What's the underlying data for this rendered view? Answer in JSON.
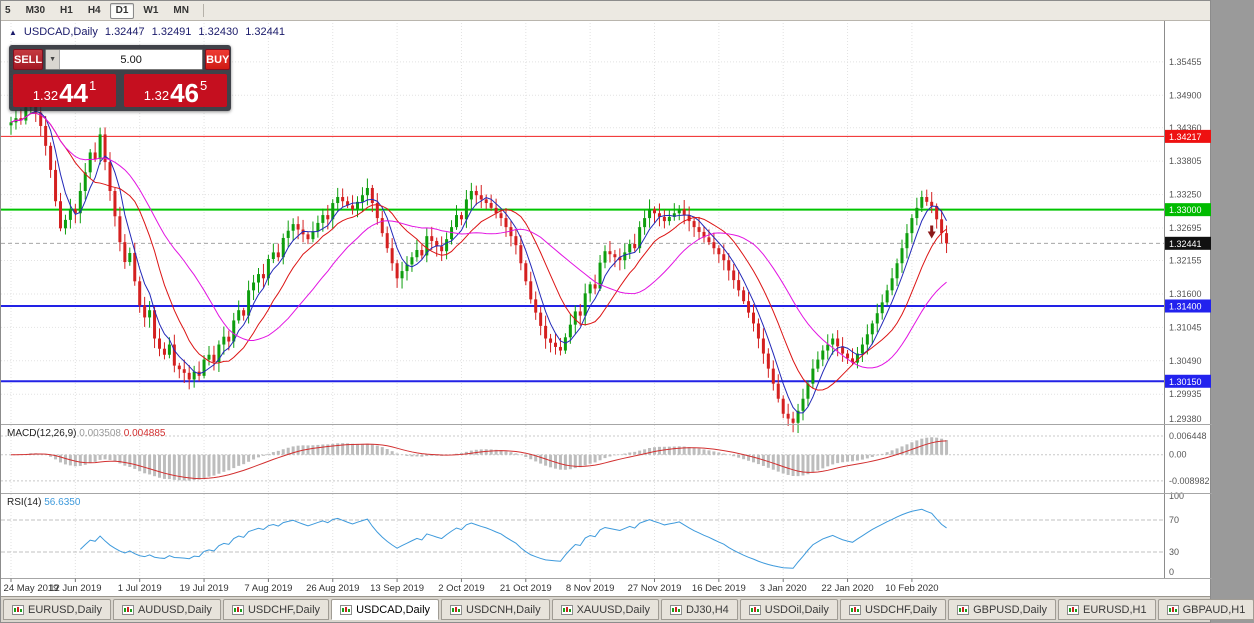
{
  "toolbar": {
    "timeframes": [
      {
        "label": "5",
        "active": false
      },
      {
        "label": "M30",
        "active": false
      },
      {
        "label": "H1",
        "active": false
      },
      {
        "label": "H4",
        "active": false
      },
      {
        "label": "D1",
        "active": true
      },
      {
        "label": "W1",
        "active": false
      },
      {
        "label": "MN",
        "active": false
      }
    ]
  },
  "info_line": {
    "collapse_icon": "▲",
    "symbol": "USDCAD,Daily",
    "open": "1.32447",
    "high": "1.32491",
    "low": "1.32430",
    "close": "1.32441"
  },
  "one_click": {
    "sell_label": "SELL",
    "buy_label": "BUY",
    "volume": "5.00",
    "dropdown_icon": "▼",
    "sell_price": {
      "prefix": "1.32",
      "big": "44",
      "sup": "1",
      "full": "1.32441"
    },
    "buy_price": {
      "prefix": "1.32",
      "big": "46",
      "sup": "5",
      "full": "1.32465"
    }
  },
  "price_axis": {
    "labels": [
      {
        "text": "1.35455",
        "value": 1.35455
      },
      {
        "text": "1.34900",
        "value": 1.349
      },
      {
        "text": "1.34360",
        "value": 1.3436
      },
      {
        "text": "1.33805",
        "value": 1.33805
      },
      {
        "text": "1.33250",
        "value": 1.3325
      },
      {
        "text": "1.32695",
        "value": 1.32695
      },
      {
        "text": "1.32155",
        "value": 1.32155
      },
      {
        "text": "1.31600",
        "value": 1.316
      },
      {
        "text": "1.31045",
        "value": 1.31045
      },
      {
        "text": "1.30490",
        "value": 1.3049
      },
      {
        "text": "1.29935",
        "value": 1.29935
      },
      {
        "text": "1.29380",
        "value": 1.2938
      }
    ],
    "badges": [
      {
        "text": "1.34217",
        "value": 1.34217,
        "color": "#ee1111"
      },
      {
        "text": "1.33000",
        "value": 1.33,
        "color": "#00bb00"
      },
      {
        "text": "1.32441",
        "value": 1.32441,
        "color": "#111111"
      },
      {
        "text": "1.31400",
        "value": 1.314,
        "color": "#2222ee"
      },
      {
        "text": "1.30150",
        "value": 1.3015,
        "color": "#2222ee"
      }
    ]
  },
  "indicators": {
    "macd": {
      "label": "MACD(12,26,9)",
      "value1": "0.003508",
      "value2": "0.004885",
      "axis": [
        "0.006448",
        "0.00",
        "-0.008982"
      ]
    },
    "rsi": {
      "label": "RSI(14)",
      "value": "56.6350",
      "axis": [
        "100",
        "70",
        "30",
        "0"
      ],
      "levels": [
        70,
        30
      ]
    }
  },
  "date_axis": [
    "24 May 2019",
    "12 Jun 2019",
    "1 Jul 2019",
    "19 Jul 2019",
    "7 Aug 2019",
    "26 Aug 2019",
    "13 Sep 2019",
    "2 Oct 2019",
    "21 Oct 2019",
    "8 Nov 2019",
    "27 Nov 2019",
    "16 Dec 2019",
    "3 Jan 2020",
    "22 Jan 2020",
    "10 Feb 2020"
  ],
  "tabs": [
    {
      "label": "EURUSD,Daily",
      "active": false
    },
    {
      "label": "AUDUSD,Daily",
      "active": false
    },
    {
      "label": "USDCHF,Daily",
      "active": false
    },
    {
      "label": "USDCAD,Daily",
      "active": true
    },
    {
      "label": "USDCNH,Daily",
      "active": false
    },
    {
      "label": "XAUUSD,Daily",
      "active": false
    },
    {
      "label": "DJ30,H4",
      "active": false
    },
    {
      "label": "USDOil,Daily",
      "active": false
    },
    {
      "label": "USDCHF,Daily",
      "active": false
    },
    {
      "label": "GBPUSD,Daily",
      "active": false
    },
    {
      "label": "EURUSD,H1",
      "active": false
    },
    {
      "label": "GBPAUD,H1",
      "active": false
    }
  ],
  "chart_data": {
    "type": "candlestick",
    "title": "USDCAD,Daily",
    "ylim": [
      1.2949,
      1.361
    ],
    "x_labels": [
      "24 May 2019",
      "12 Jun 2019",
      "1 Jul 2019",
      "19 Jul 2019",
      "7 Aug 2019",
      "26 Aug 2019",
      "13 Sep 2019",
      "2 Oct 2019",
      "21 Oct 2019",
      "8 Nov 2019",
      "27 Nov 2019",
      "16 Dec 2019",
      "3 Jan 2020",
      "22 Jan 2020",
      "10 Feb 2020"
    ],
    "bars_per_label": 13,
    "first_open": 1.344,
    "closes": [
      1.3445,
      1.3452,
      1.3448,
      1.347,
      1.3485,
      1.3461,
      1.3439,
      1.3406,
      1.3366,
      1.3314,
      1.3269,
      1.3283,
      1.3301,
      1.3294,
      1.3331,
      1.3362,
      1.3395,
      1.3384,
      1.3425,
      1.3379,
      1.3331,
      1.3289,
      1.3246,
      1.3213,
      1.3228,
      1.3181,
      1.3141,
      1.3121,
      1.3133,
      1.3086,
      1.3069,
      1.3059,
      1.3076,
      1.3041,
      1.3035,
      1.3029,
      1.3018,
      1.3031,
      1.3024,
      1.3051,
      1.3059,
      1.3047,
      1.3076,
      1.3089,
      1.3081,
      1.3116,
      1.3133,
      1.3124,
      1.3166,
      1.3179,
      1.3193,
      1.3186,
      1.3218,
      1.3229,
      1.3221,
      1.3253,
      1.3265,
      1.3276,
      1.3267,
      1.3259,
      1.3251,
      1.3264,
      1.3278,
      1.3291,
      1.3284,
      1.3311,
      1.3321,
      1.3314,
      1.3307,
      1.3301,
      1.3313,
      1.3324,
      1.3336,
      1.3311,
      1.3286,
      1.3261,
      1.3236,
      1.3211,
      1.3186,
      1.3198,
      1.3209,
      1.3221,
      1.3233,
      1.3224,
      1.3256,
      1.3248,
      1.3239,
      1.3231,
      1.3251,
      1.3271,
      1.3291,
      1.3284,
      1.3317,
      1.3331,
      1.3324,
      1.3317,
      1.3311,
      1.3303,
      1.3294,
      1.3286,
      1.3271,
      1.3256,
      1.3241,
      1.3211,
      1.3181,
      1.3151,
      1.3129,
      1.3107,
      1.3086,
      1.3079,
      1.3072,
      1.3066,
      1.3088,
      1.3109,
      1.3131,
      1.3124,
      1.3161,
      1.3176,
      1.3169,
      1.3212,
      1.3231,
      1.3226,
      1.3221,
      1.3216,
      1.3229,
      1.3243,
      1.3236,
      1.3271,
      1.3286,
      1.3301,
      1.3294,
      1.3288,
      1.3281,
      1.3288,
      1.3294,
      1.3301,
      1.3291,
      1.3281,
      1.3271,
      1.3263,
      1.3254,
      1.3246,
      1.3236,
      1.3226,
      1.3216,
      1.3199,
      1.3183,
      1.3166,
      1.3148,
      1.3129,
      1.3111,
      1.3086,
      1.3061,
      1.3036,
      1.3011,
      1.2986,
      1.2961,
      1.2953,
      1.2946,
      1.2966,
      1.2986,
      1.3011,
      1.3036,
      1.3051,
      1.3066,
      1.3076,
      1.3086,
      1.3073,
      1.3061,
      1.3053,
      1.3046,
      1.3061,
      1.3076,
      1.3093,
      1.3111,
      1.3128,
      1.3146,
      1.3166,
      1.3186,
      1.3211,
      1.3236,
      1.3261,
      1.3286,
      1.3303,
      1.3321,
      1.3313,
      1.3306,
      1.3284,
      1.3261,
      1.32441
    ],
    "levels": [
      {
        "value": 1.34217,
        "color": "#f02222",
        "width": 1
      },
      {
        "value": 1.33,
        "color": "#00c400",
        "width": 2
      },
      {
        "value": 1.314,
        "color": "#2222e6",
        "width": 2
      },
      {
        "value": 1.3015,
        "color": "#2222e6",
        "width": 2
      }
    ],
    "bid": 1.32441,
    "up_color": "#0e9e0e",
    "down_color": "#d42020",
    "moving_averages": [
      {
        "period": 5,
        "color": "#2228b8"
      },
      {
        "period": 12,
        "color": "#dc1414"
      },
      {
        "period": 24,
        "color": "#e214e2"
      }
    ],
    "marker": {
      "index": 186,
      "price": 1.3252,
      "type": "down-arrow",
      "color": "#8b1a1a"
    },
    "macd": {
      "fast": 12,
      "slow": 26,
      "signal": 9,
      "range": [
        -0.0118,
        0.0092
      ]
    },
    "rsi": {
      "period": 14,
      "range": [
        0,
        100
      ]
    }
  }
}
